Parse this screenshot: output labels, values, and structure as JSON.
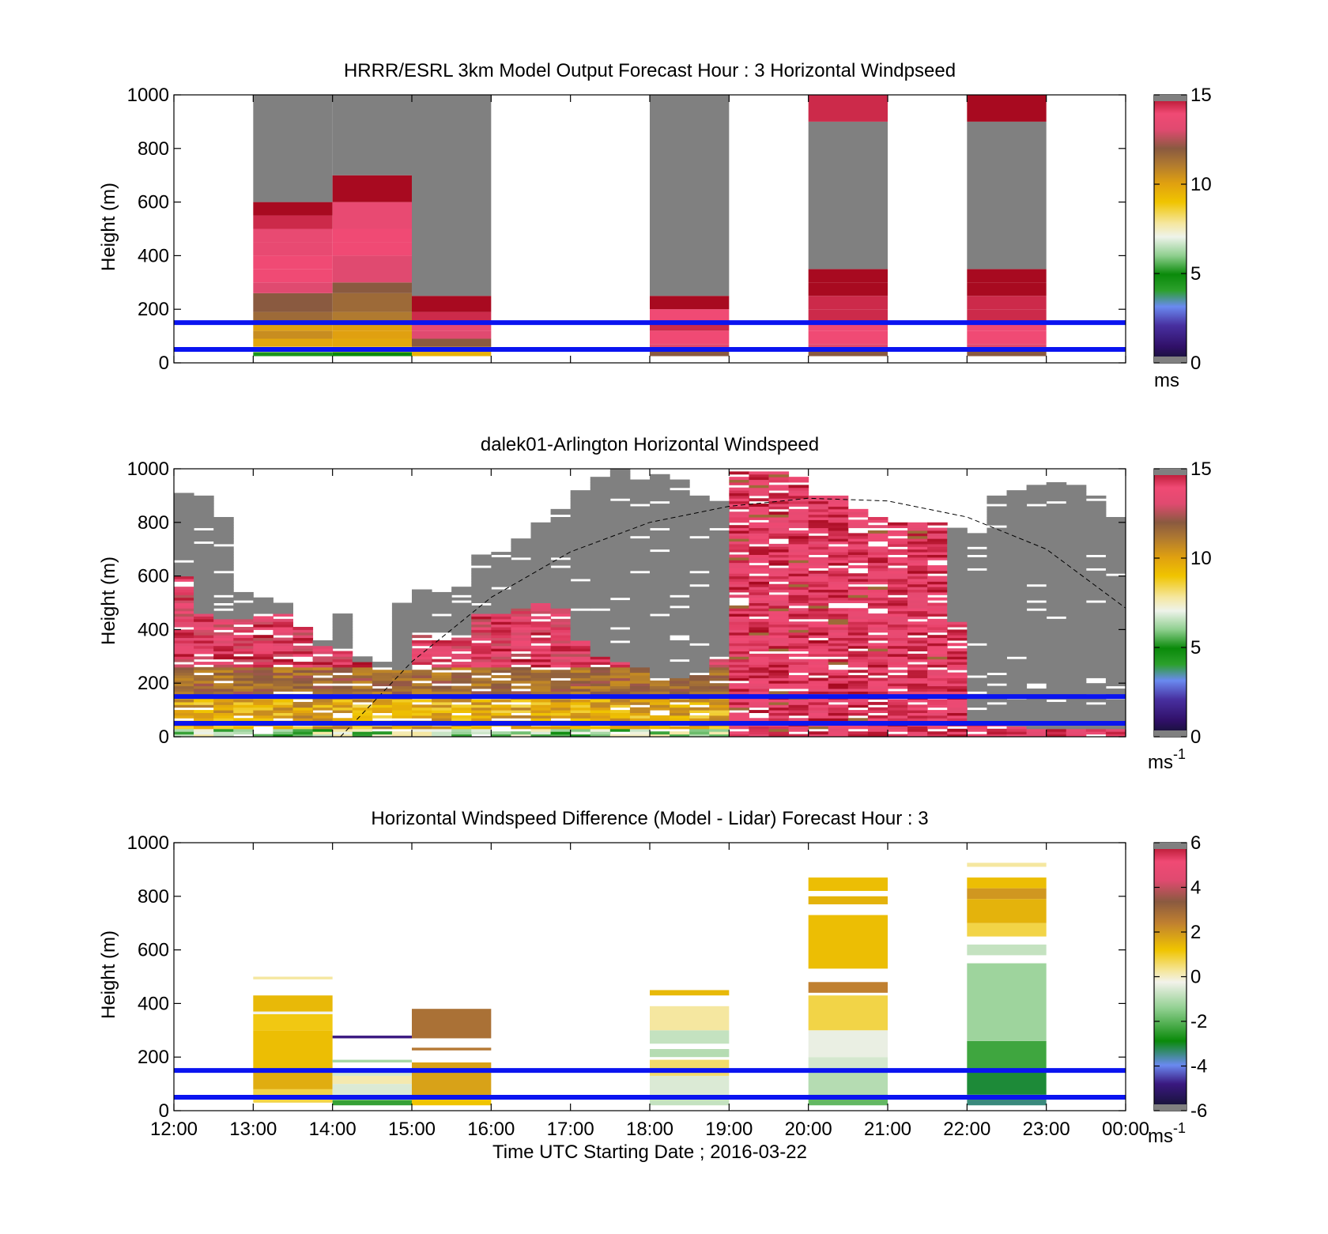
{
  "figure": {
    "xlabel": "Time UTC  Starting Date ; 2016-03-22",
    "x_ticks": [
      "12:00",
      "13:00",
      "14:00",
      "15:00",
      "16:00",
      "17:00",
      "18:00",
      "19:00",
      "20:00",
      "21:00",
      "22:00",
      "23:00",
      "00:00"
    ]
  },
  "chart_data": [
    {
      "type": "heatmap",
      "title": "HRRR/ESRL 3km Model Output   Forecast Hour : 3 Horizontal Windpseed",
      "ylabel": "Height (m)",
      "y_ticks": [
        "0",
        "200",
        "400",
        "600",
        "800",
        "1000"
      ],
      "ylim": [
        0,
        1000
      ],
      "xlim_hours": [
        12,
        24
      ],
      "colorbar": {
        "ticks": [
          "0",
          "5",
          "10",
          "15"
        ],
        "range": [
          0,
          15
        ],
        "unit": "ms"
      },
      "reference_lines_m": [
        50,
        150
      ],
      "cells": [
        {
          "t0": 13,
          "t1": 14,
          "bands": [
            [
              25,
              40,
              4.5
            ],
            [
              40,
              60,
              7.5
            ],
            [
              60,
              90,
              9.8
            ],
            [
              90,
              120,
              10.5
            ],
            [
              120,
              150,
              10
            ],
            [
              150,
              190,
              11.5
            ],
            [
              190,
              260,
              12
            ],
            [
              260,
              300,
              13
            ],
            [
              300,
              350,
              14
            ],
            [
              350,
              400,
              14
            ],
            [
              400,
              450,
              13.5
            ],
            [
              450,
              500,
              13.5
            ],
            [
              500,
              550,
              14.5
            ],
            [
              550,
              600,
              15
            ],
            [
              600,
              1000,
              "missing"
            ]
          ]
        },
        {
          "t0": 14,
          "t1": 15,
          "bands": [
            [
              25,
              40,
              5
            ],
            [
              40,
              60,
              8.5
            ],
            [
              60,
              90,
              9.8
            ],
            [
              90,
              120,
              10
            ],
            [
              120,
              150,
              10
            ],
            [
              150,
              190,
              11
            ],
            [
              190,
              260,
              11.5
            ],
            [
              260,
              300,
              12
            ],
            [
              300,
              400,
              13
            ],
            [
              400,
              450,
              14
            ],
            [
              450,
              500,
              14
            ],
            [
              500,
              600,
              13.5
            ],
            [
              600,
              700,
              15
            ],
            [
              700,
              1000,
              "missing"
            ]
          ]
        },
        {
          "t0": 15,
          "t1": 16,
          "bands": [
            [
              25,
              40,
              9.5
            ],
            [
              40,
              60,
              10
            ],
            [
              60,
              90,
              12
            ],
            [
              90,
              120,
              13
            ],
            [
              120,
              150,
              13.5
            ],
            [
              150,
              190,
              14.5
            ],
            [
              190,
              250,
              15
            ],
            [
              250,
              1000,
              "missing"
            ]
          ]
        },
        {
          "t0": 18,
          "t1": 19,
          "bands": [
            [
              25,
              45,
              12
            ],
            [
              45,
              70,
              13
            ],
            [
              70,
              120,
              14
            ],
            [
              120,
              150,
              14.5
            ],
            [
              150,
              200,
              14
            ],
            [
              200,
              250,
              15
            ],
            [
              250,
              1000,
              "missing"
            ]
          ]
        },
        {
          "t0": 20,
          "t1": 21,
          "bands": [
            [
              25,
              45,
              12
            ],
            [
              45,
              70,
              13
            ],
            [
              70,
              120,
              14
            ],
            [
              120,
              150,
              14
            ],
            [
              150,
              200,
              14.5
            ],
            [
              200,
              250,
              14.5
            ],
            [
              250,
              300,
              15
            ],
            [
              300,
              350,
              15
            ],
            [
              350,
              900,
              "missing"
            ],
            [
              900,
              1000,
              14.5
            ]
          ]
        },
        {
          "t0": 22,
          "t1": 23,
          "bands": [
            [
              25,
              45,
              12
            ],
            [
              45,
              70,
              13
            ],
            [
              70,
              120,
              14
            ],
            [
              120,
              150,
              14
            ],
            [
              150,
              200,
              14.5
            ],
            [
              200,
              250,
              14.5
            ],
            [
              250,
              300,
              15
            ],
            [
              300,
              350,
              15
            ],
            [
              350,
              900,
              "missing"
            ],
            [
              900,
              1000,
              15
            ]
          ]
        }
      ]
    },
    {
      "type": "heatmap",
      "title": "dalek01-Arlington  Horizontal Windspeed",
      "ylabel": "Height (m)",
      "y_ticks": [
        "0",
        "200",
        "400",
        "600",
        "800",
        "1000"
      ],
      "ylim": [
        0,
        1000
      ],
      "xlim_hours": [
        12,
        24
      ],
      "colorbar": {
        "ticks": [
          "0",
          "5",
          "10",
          "15"
        ],
        "range": [
          0,
          15
        ],
        "unit": "ms",
        "unit_exp": "-1"
      },
      "reference_lines_m": [
        50,
        150
      ],
      "dashed_curve": [
        [
          14.1,
          0
        ],
        [
          15,
          280
        ],
        [
          16,
          520
        ],
        [
          17,
          690
        ],
        [
          18,
          800
        ],
        [
          19,
          860
        ],
        [
          20,
          890
        ],
        [
          21,
          880
        ],
        [
          22,
          820
        ],
        [
          23,
          700
        ],
        [
          24,
          480
        ]
      ],
      "columns": [
        {
          "t": 12.0,
          "top": 910,
          "gray": 600
        },
        {
          "t": 12.25,
          "top": 900,
          "gray": 460
        },
        {
          "t": 12.5,
          "top": 820,
          "gray": 440
        },
        {
          "t": 12.75,
          "top": 540,
          "gray": 440
        },
        {
          "t": 13.0,
          "top": 520,
          "gray": 450
        },
        {
          "t": 13.25,
          "top": 500,
          "gray": 460
        },
        {
          "t": 13.5,
          "top": 420,
          "gray": 420
        },
        {
          "t": 13.75,
          "top": 360,
          "gray": 340
        },
        {
          "t": 14.0,
          "top": 460,
          "gray": 320
        },
        {
          "t": 14.25,
          "top": 300,
          "gray": 280
        },
        {
          "t": 14.5,
          "top": 290,
          "gray": 260
        },
        {
          "t": 14.75,
          "top": 500,
          "gray": 250
        },
        {
          "t": 15.0,
          "top": 550,
          "gray": 390
        },
        {
          "t": 15.25,
          "top": 540,
          "gray": 380
        },
        {
          "t": 15.5,
          "top": 560,
          "gray": 380
        },
        {
          "t": 15.75,
          "top": 680,
          "gray": 460
        },
        {
          "t": 16.0,
          "top": 700,
          "gray": 460
        },
        {
          "t": 16.25,
          "top": 740,
          "gray": 480
        },
        {
          "t": 16.5,
          "top": 800,
          "gray": 500
        },
        {
          "t": 16.75,
          "top": 850,
          "gray": 480
        },
        {
          "t": 17.0,
          "top": 920,
          "gray": 360
        },
        {
          "t": 17.25,
          "top": 970,
          "gray": 300
        },
        {
          "t": 17.5,
          "top": 1000,
          "gray": 280
        },
        {
          "t": 17.75,
          "top": 960,
          "gray": 260
        },
        {
          "t": 18.0,
          "top": 980,
          "gray": 220
        },
        {
          "t": 18.25,
          "top": 960,
          "gray": 220
        },
        {
          "t": 18.5,
          "top": 900,
          "gray": 240
        },
        {
          "t": 18.75,
          "top": 880,
          "gray": 300
        },
        {
          "t": 19.0,
          "top": 990,
          "gray": 1000
        },
        {
          "t": 19.25,
          "top": 990,
          "gray": 1000
        },
        {
          "t": 19.5,
          "top": 990,
          "gray": 1000
        },
        {
          "t": 19.75,
          "top": 970,
          "gray": 1000
        },
        {
          "t": 20.0,
          "top": 900,
          "gray": 1000
        },
        {
          "t": 20.25,
          "top": 900,
          "gray": 1000
        },
        {
          "t": 20.5,
          "top": 860,
          "gray": 1000
        },
        {
          "t": 20.75,
          "top": 820,
          "gray": 1000
        },
        {
          "t": 21.0,
          "top": 800,
          "gray": 1000
        },
        {
          "t": 21.25,
          "top": 800,
          "gray": 1000
        },
        {
          "t": 21.5,
          "top": 800,
          "gray": 1000
        },
        {
          "t": 21.75,
          "top": 780,
          "gray": 430
        },
        {
          "t": 22.0,
          "top": 760,
          "gray": 60
        },
        {
          "t": 22.25,
          "top": 900,
          "gray": 50
        },
        {
          "t": 22.5,
          "top": 920,
          "gray": 40
        },
        {
          "t": 22.75,
          "top": 950,
          "gray": 30
        },
        {
          "t": 23.0,
          "top": 950,
          "gray": 30
        },
        {
          "t": 23.25,
          "top": 940,
          "gray": 30
        },
        {
          "t": 23.5,
          "top": 900,
          "gray": 30
        },
        {
          "t": 23.75,
          "top": 820,
          "gray": 30
        }
      ]
    },
    {
      "type": "heatmap",
      "title": "Horizontal Windspeed Difference (Model - Lidar) Forecast Hour : 3",
      "ylabel": "Height (m)",
      "y_ticks": [
        "0",
        "200",
        "400",
        "600",
        "800",
        "1000"
      ],
      "ylim": [
        0,
        1000
      ],
      "xlim_hours": [
        12,
        24
      ],
      "colorbar": {
        "ticks": [
          "-6",
          "-4",
          "-2",
          "0",
          "2",
          "4",
          "6"
        ],
        "range": [
          -6,
          6
        ],
        "unit": "ms",
        "unit_exp": "-1"
      },
      "reference_lines_m": [
        50,
        150
      ],
      "cells": [
        {
          "t0": 13,
          "t1": 14,
          "bands": [
            [
              490,
              500,
              0.3
            ],
            [
              30,
              80,
              0.8
            ],
            [
              80,
              150,
              1.6
            ],
            [
              150,
              300,
              1.3
            ],
            [
              300,
              360,
              1.1
            ],
            [
              360,
              370,
              -0.2
            ],
            [
              370,
              430,
              1.4
            ]
          ]
        },
        {
          "t0": 14,
          "t1": 15,
          "bands": [
            [
              20,
              40,
              -2.5
            ],
            [
              40,
              100,
              -0.5
            ],
            [
              100,
              130,
              0.2
            ],
            [
              130,
              150,
              -0.6
            ],
            [
              180,
              190,
              -1.2
            ],
            [
              270,
              280,
              -5.0
            ]
          ]
        },
        {
          "t0": 15,
          "t1": 16,
          "bands": [
            [
              20,
              50,
              1.2
            ],
            [
              50,
              180,
              1.8
            ],
            [
              225,
              235,
              2.6
            ],
            [
              270,
              380,
              2.8
            ]
          ]
        },
        {
          "t0": 18,
          "t1": 19,
          "bands": [
            [
              20,
              60,
              -0.8
            ],
            [
              60,
              130,
              -0.5
            ],
            [
              130,
              190,
              0.6
            ],
            [
              200,
              230,
              -1.0
            ],
            [
              250,
              300,
              -0.8
            ],
            [
              300,
              390,
              0.3
            ],
            [
              430,
              450,
              1.4
            ]
          ]
        },
        {
          "t0": 20,
          "t1": 21,
          "bands": [
            [
              20,
              60,
              -2.0
            ],
            [
              60,
              150,
              -1.0
            ],
            [
              150,
              200,
              -0.6
            ],
            [
              200,
              300,
              -0.3
            ],
            [
              300,
              430,
              0.8
            ],
            [
              440,
              480,
              2.4
            ],
            [
              530,
              730,
              1.3
            ],
            [
              770,
              800,
              1.5
            ],
            [
              820,
              870,
              1.3
            ]
          ]
        },
        {
          "t0": 22,
          "t1": 23,
          "bands": [
            [
              20,
              60,
              -3.5
            ],
            [
              60,
              150,
              -3.2
            ],
            [
              150,
              260,
              -2.4
            ],
            [
              260,
              550,
              -1.3
            ],
            [
              580,
              620,
              -0.8
            ],
            [
              650,
              700,
              0.8
            ],
            [
              700,
              790,
              1.5
            ],
            [
              790,
              830,
              2.0
            ],
            [
              830,
              870,
              1.3
            ],
            [
              910,
              925,
              0.3
            ]
          ]
        }
      ]
    }
  ]
}
